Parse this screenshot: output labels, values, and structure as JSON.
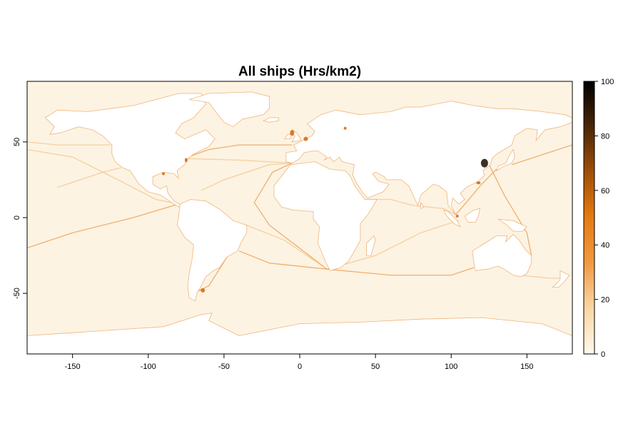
{
  "title": "All ships (Hrs/km2)",
  "map": {
    "x_axis": {
      "range": [
        -180,
        180
      ],
      "ticks": [
        -150,
        -100,
        -50,
        0,
        50,
        100,
        150
      ]
    },
    "y_axis": {
      "range": [
        -90,
        90
      ],
      "ticks": [
        -50,
        0,
        50
      ]
    },
    "background_color": "#fdf3e2",
    "land_color": "#ffffff",
    "route_colors": [
      "#f2c48a",
      "#e8994a",
      "#d2650d"
    ],
    "hotspot_color": "#1a0d04"
  },
  "legend": {
    "range": [
      0,
      100
    ],
    "ticks": [
      0,
      20,
      40,
      60,
      80,
      100
    ],
    "colors": [
      "#fff8ea",
      "#f9d7a5",
      "#f19a42",
      "#e77a10",
      "#a04f08",
      "#4a2606",
      "#000000"
    ]
  }
}
